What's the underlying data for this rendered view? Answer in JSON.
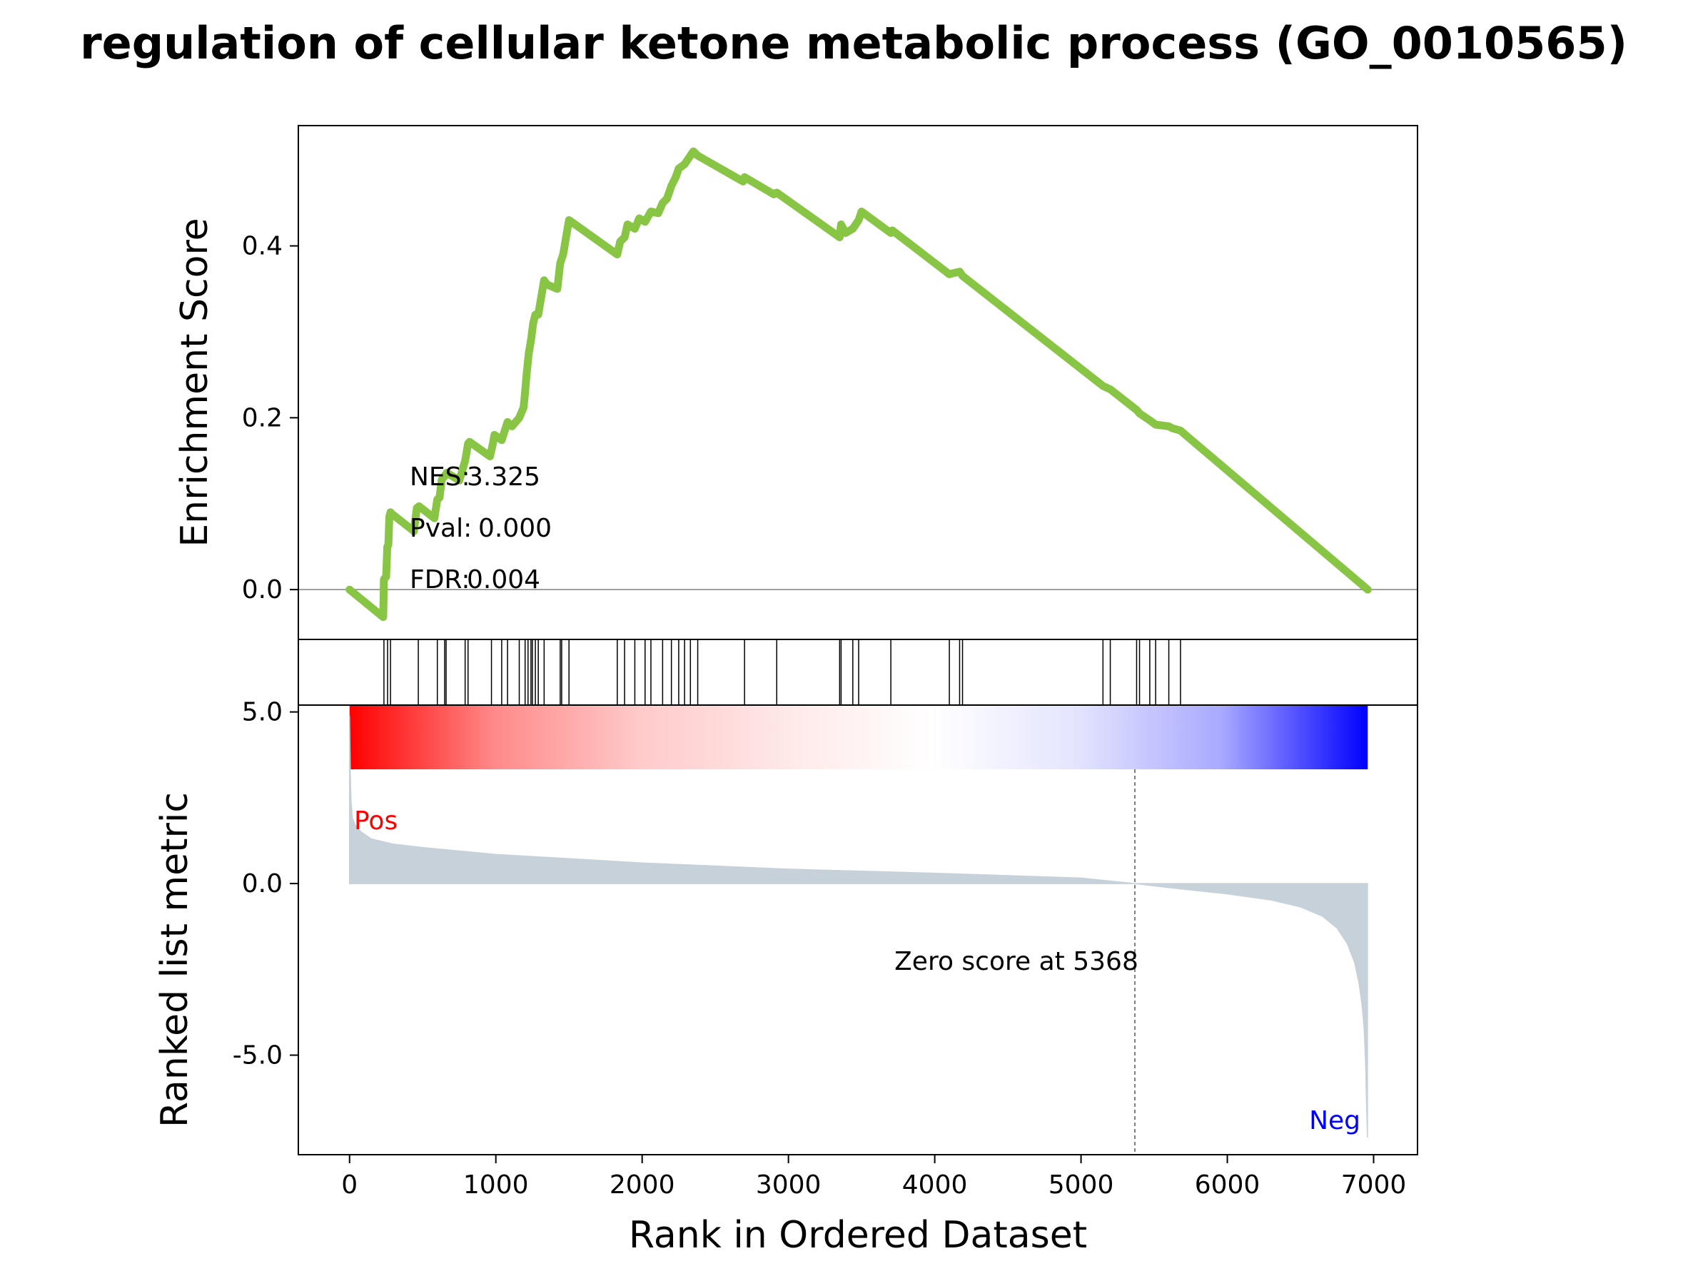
{
  "title": "regulation of cellular ketone metabolic process (GO_0010565)",
  "chart_data": [
    {
      "type": "line",
      "panel": "enrichment-score",
      "ylabel": "Enrichment Score",
      "yticks": [
        "0.0",
        "0.2",
        "0.4"
      ],
      "ytick_values": [
        0.0,
        0.2,
        0.4
      ],
      "xlim": [
        -350,
        7300
      ],
      "ylim": [
        -0.058,
        0.54
      ],
      "line_color": "#88c544",
      "zero_line": true,
      "series": [
        {
          "x": [
            0,
            230,
            235,
            250,
            258,
            265,
            272,
            280,
            290,
            440,
            460,
            475,
            580,
            600,
            615,
            630,
            650,
            665,
            750,
            790,
            810,
            820,
            960,
            980,
            990,
            1040,
            1080,
            1110,
            1160,
            1190,
            1200,
            1210,
            1225,
            1240,
            1255,
            1270,
            1290,
            1330,
            1350,
            1420,
            1440,
            1460,
            1490,
            1500,
            1830,
            1850,
            1880,
            1900,
            1950,
            1980,
            2020,
            2060,
            2110,
            2140,
            2170,
            2200,
            2230,
            2250,
            2290,
            2330,
            2350,
            2380,
            2690,
            2700,
            2900,
            2920,
            3350,
            3360,
            3390,
            3440,
            3480,
            3500,
            3700,
            3710,
            4100,
            4120,
            4170,
            4190,
            5150,
            5200,
            5380,
            5400,
            5470,
            5510,
            5600,
            5620,
            5680,
            5700,
            6960
          ],
          "y": [
            0.0,
            -0.032,
            0.012,
            0.015,
            0.05,
            0.052,
            0.085,
            0.09,
            0.088,
            0.068,
            0.095,
            0.097,
            0.083,
            0.105,
            0.107,
            0.128,
            0.132,
            0.136,
            0.127,
            0.15,
            0.17,
            0.172,
            0.155,
            0.17,
            0.18,
            0.174,
            0.195,
            0.19,
            0.2,
            0.212,
            0.23,
            0.25,
            0.275,
            0.29,
            0.31,
            0.32,
            0.32,
            0.36,
            0.355,
            0.35,
            0.38,
            0.39,
            0.42,
            0.43,
            0.39,
            0.405,
            0.41,
            0.425,
            0.42,
            0.432,
            0.428,
            0.44,
            0.438,
            0.45,
            0.455,
            0.47,
            0.48,
            0.49,
            0.495,
            0.505,
            0.51,
            0.505,
            0.475,
            0.48,
            0.46,
            0.462,
            0.41,
            0.425,
            0.415,
            0.42,
            0.43,
            0.44,
            0.415,
            0.418,
            0.367,
            0.368,
            0.37,
            0.365,
            0.237,
            0.233,
            0.209,
            0.205,
            0.197,
            0.192,
            0.19,
            0.188,
            0.185,
            0.182,
            0.0
          ]
        }
      ],
      "annotations": [
        {
          "label": "NES:",
          "value": "3.325"
        },
        {
          "label": "Pval:",
          "value": "0.000"
        },
        {
          "label": "FDR:",
          "value": "0.004"
        }
      ]
    },
    {
      "type": "scatter",
      "panel": "gene-hits",
      "x": [
        235,
        260,
        280,
        470,
        600,
        650,
        660,
        790,
        810,
        970,
        1040,
        1080,
        1160,
        1200,
        1220,
        1240,
        1250,
        1270,
        1290,
        1330,
        1440,
        1450,
        1500,
        1830,
        1880,
        1950,
        2020,
        2060,
        2140,
        2200,
        2250,
        2290,
        2330,
        2380,
        2700,
        2920,
        3350,
        3360,
        3440,
        3480,
        3700,
        4100,
        4170,
        4190,
        5150,
        5200,
        5380,
        5400,
        5470,
        5510,
        5600,
        5680
      ]
    },
    {
      "type": "area",
      "panel": "ranked-list-metric",
      "ylabel": "Ranked list metric",
      "xlabel": "Rank in Ordered Dataset",
      "xticks": [
        "0",
        "1000",
        "2000",
        "3000",
        "4000",
        "5000",
        "6000",
        "7000"
      ],
      "xtick_values": [
        0,
        1000,
        2000,
        3000,
        4000,
        5000,
        6000,
        7000
      ],
      "yticks": [
        "5.0",
        "0.0",
        "-5.0"
      ],
      "ytick_values": [
        5.0,
        0.0,
        -5.0
      ],
      "xlim": [
        -350,
        7300
      ],
      "ylim": [
        -7.9,
        5.2
      ],
      "fill_color": "#c6d1da",
      "x": [
        0,
        5,
        10,
        20,
        40,
        80,
        150,
        300,
        500,
        1000,
        2000,
        3000,
        4000,
        5000,
        5368,
        5600,
        6000,
        6300,
        6500,
        6650,
        6750,
        6820,
        6870,
        6900,
        6920,
        6935,
        6945,
        6952,
        6958
      ],
      "y": [
        4.9,
        3.2,
        2.4,
        1.9,
        1.7,
        1.5,
        1.3,
        1.15,
        1.05,
        0.85,
        0.6,
        0.42,
        0.3,
        0.16,
        0.0,
        -0.12,
        -0.3,
        -0.48,
        -0.68,
        -0.95,
        -1.3,
        -1.75,
        -2.3,
        -2.9,
        -3.5,
        -4.2,
        -5.2,
        -6.5,
        -7.4
      ],
      "zero_score_label": "Zero score at 5368",
      "zero_score_x": 5368,
      "pos_label": "Pos",
      "neg_label": "Neg",
      "colorbar": [
        "#ff0000",
        "#ff8a8a",
        "#ffcaca",
        "#ffe8e8",
        "#ffffff",
        "#e4e4ff",
        "#a8a8ff",
        "#0000ff"
      ]
    }
  ]
}
